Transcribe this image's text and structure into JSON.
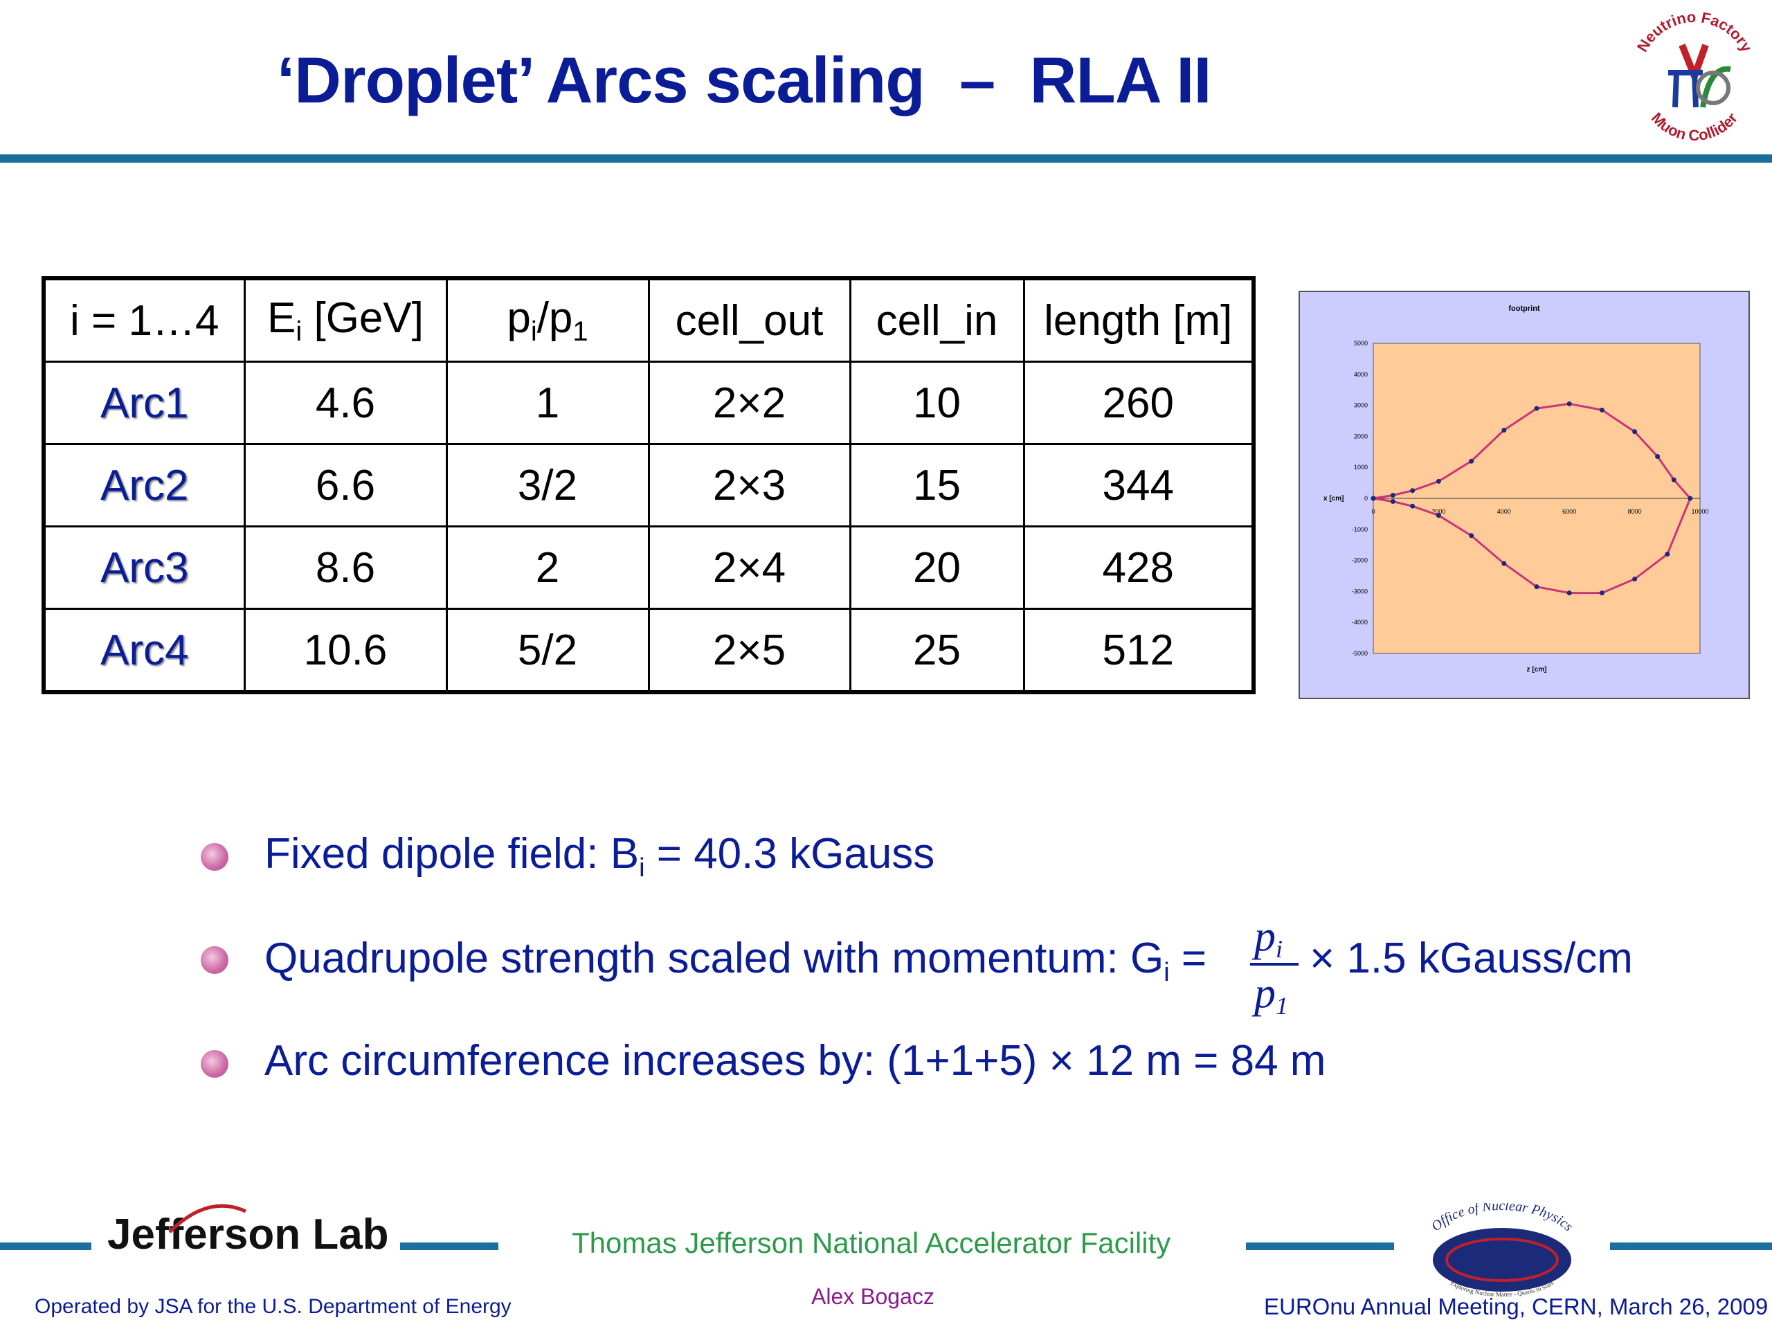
{
  "title": "‘Droplet’ Arcs scaling  –  RLA II",
  "logo_neutrino": {
    "top_text": "Neutrino Factory",
    "bottom_text": "Muon Collider"
  },
  "table": {
    "headers": {
      "i": "i = 1…4",
      "E_main": "E",
      "E_sub": "i",
      "E_unit": " [GeV]",
      "p_main1": "p",
      "p_sub1": "i",
      "p_slash": "/p",
      "p_sub2": "1",
      "cell_out": "cell_out",
      "cell_in": "cell_in",
      "length": "length [m]"
    },
    "rows": [
      {
        "name": "Arc1",
        "E": "4.6",
        "p": "1",
        "cell_out": "2×2",
        "cell_in": "10",
        "length": "260"
      },
      {
        "name": "Arc2",
        "E": "6.6",
        "p": "3/2",
        "cell_out": "2×3",
        "cell_in": "15",
        "length": "344"
      },
      {
        "name": "Arc3",
        "E": "8.6",
        "p": "2",
        "cell_out": "2×4",
        "cell_in": "20",
        "length": "428"
      },
      {
        "name": "Arc4",
        "E": "10.6",
        "p": "5/2",
        "cell_out": "2×5",
        "cell_in": "25",
        "length": "512"
      }
    ]
  },
  "chart_data": {
    "type": "scatter",
    "title": "footprint",
    "xlabel": "z [cm]",
    "ylabel": "x [cm]",
    "xlim": [
      0,
      10000
    ],
    "ylim": [
      -5000,
      5000
    ],
    "xticks": [
      "0",
      "2000",
      "4000",
      "6000",
      "8000",
      "10000"
    ],
    "yticks": [
      "5000",
      "4000",
      "3000",
      "2000",
      "1000",
      "0",
      "-1000",
      "-2000",
      "-3000",
      "-4000",
      "-5000"
    ],
    "series": [
      {
        "values_x": [
          0,
          600,
          1200,
          2000,
          3000,
          4000,
          5000,
          6000,
          7000,
          8000,
          8700,
          9200,
          9700,
          9000,
          8000,
          7000,
          6000,
          5000,
          4000,
          3000,
          2000,
          1200,
          600,
          0
        ],
        "values_y": [
          0,
          100,
          250,
          550,
          1200,
          2200,
          2900,
          3050,
          2850,
          2150,
          1350,
          600,
          0,
          -1800,
          -2600,
          -3050,
          -3050,
          -2850,
          -2100,
          -1200,
          -550,
          -250,
          -100,
          0
        ]
      }
    ],
    "colors": {
      "background": "#ffcc99",
      "line": "#cc3377",
      "markers": "#1a2a80"
    }
  },
  "bullets": {
    "b1": {
      "text": "Fixed dipole field: B",
      "sub": "i",
      "rest": " = 40.3 kGauss"
    },
    "b2": {
      "text": "Quadrupole strength scaled with momentum: G",
      "sub": "i",
      "rest": " =",
      "frac_num": "p",
      "frac_num_sub": "i",
      "frac_den": "p",
      "frac_den_sub": "1",
      "tail": "× 1.5 kGauss/cm"
    },
    "b3": {
      "text": "Arc circumference increases by: (1+1+5) × 12 m = 84 m"
    }
  },
  "footer": {
    "jlab": "Jefferson Lab",
    "facility": "Thomas Jefferson National Accelerator Facility",
    "operated": "Operated by JSA for the U.S. Department of Energy",
    "author": "Alex Bogacz",
    "meeting": "EUROnu Annual Meeting, CERN, March 26, 2009",
    "onp_top": "Office of Nuclear Physics",
    "onp_bottom": "Exploring Nuclear Matter - Quarks to Stars"
  }
}
